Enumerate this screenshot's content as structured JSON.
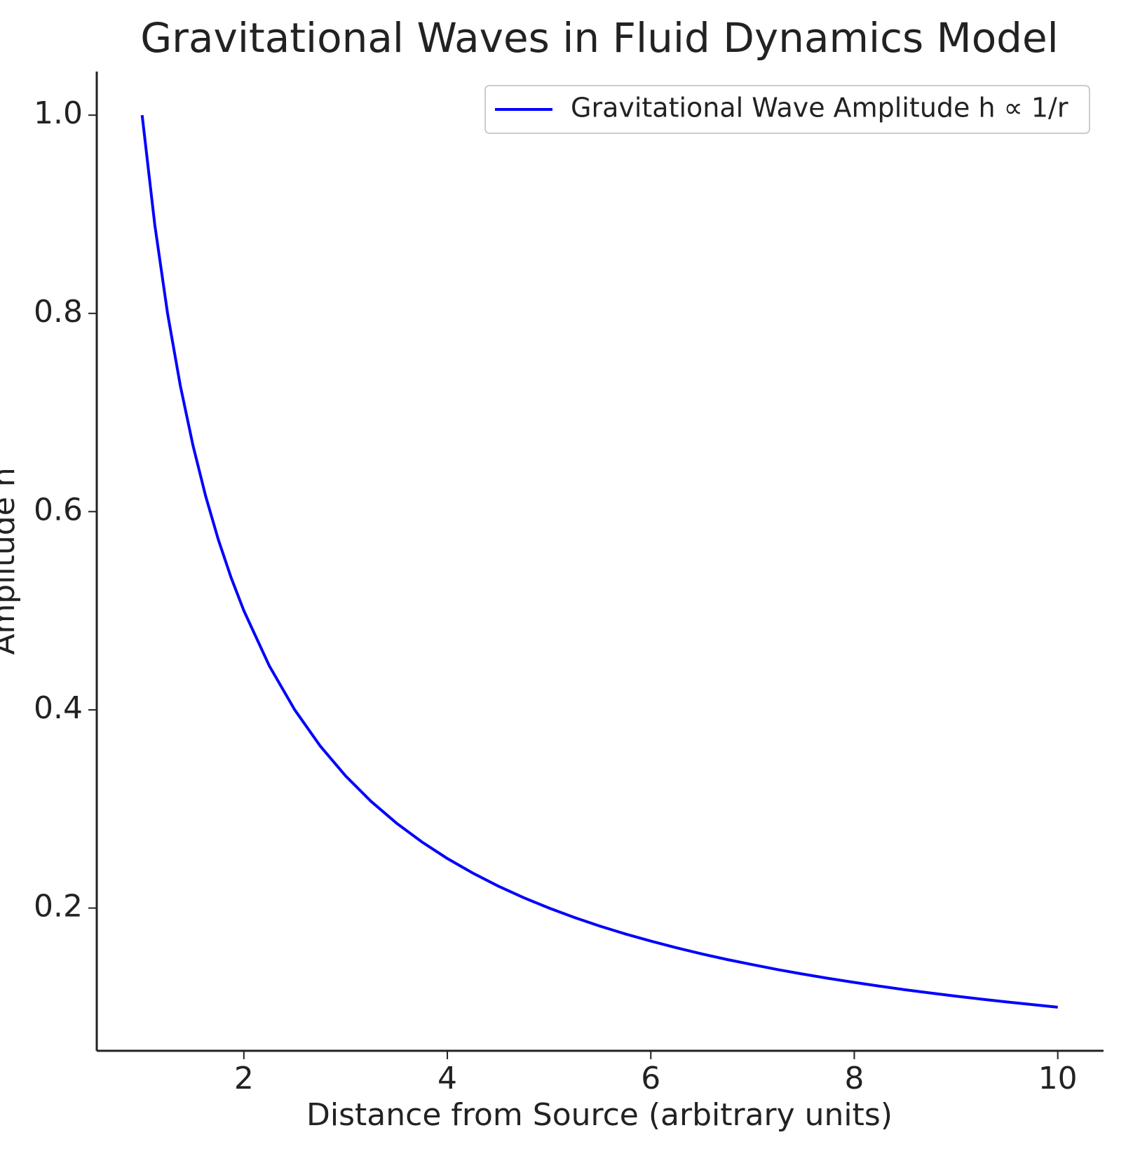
{
  "chart_data": {
    "type": "line",
    "title": "Gravitational Waves in Fluid Dynamics Model",
    "x_label": "Distance from Source (arbitrary units)",
    "y_label": "Amplitude h",
    "x": [
      1,
      1.125,
      1.25,
      1.375,
      1.5,
      1.625,
      1.75,
      1.875,
      2,
      2.25,
      2.5,
      2.75,
      3,
      3.25,
      3.5,
      3.75,
      4,
      4.25,
      4.5,
      4.75,
      5,
      5.25,
      5.5,
      5.75,
      6,
      6.25,
      6.5,
      6.75,
      7,
      7.25,
      7.5,
      7.75,
      8,
      8.25,
      8.5,
      8.75,
      9,
      9.25,
      9.5,
      9.75,
      10
    ],
    "series": [
      {
        "name": "Gravitational Wave Amplitude h ∝ 1/r",
        "color": "#0000ff",
        "values": [
          1,
          0.8889,
          0.8,
          0.7273,
          0.6667,
          0.6154,
          0.5714,
          0.5333,
          0.5,
          0.4444,
          0.4,
          0.3636,
          0.3333,
          0.3077,
          0.2857,
          0.2667,
          0.25,
          0.2353,
          0.2222,
          0.2105,
          0.2,
          0.1905,
          0.1818,
          0.1739,
          0.1667,
          0.16,
          0.1538,
          0.1481,
          0.1429,
          0.1379,
          0.1333,
          0.129,
          0.125,
          0.1212,
          0.1176,
          0.1143,
          0.1111,
          0.1081,
          0.1053,
          0.1026,
          0.1
        ]
      }
    ],
    "xlim": [
      0.554,
      10.45
    ],
    "ylim": [
      0.056,
      1.044
    ],
    "xticks": [
      2,
      4,
      6,
      8,
      10
    ],
    "yticks": [
      0.2,
      0.4,
      0.6,
      0.8,
      {
        "value": 1,
        "label": "1.0"
      }
    ],
    "legend": "upper right",
    "grid": false
  }
}
